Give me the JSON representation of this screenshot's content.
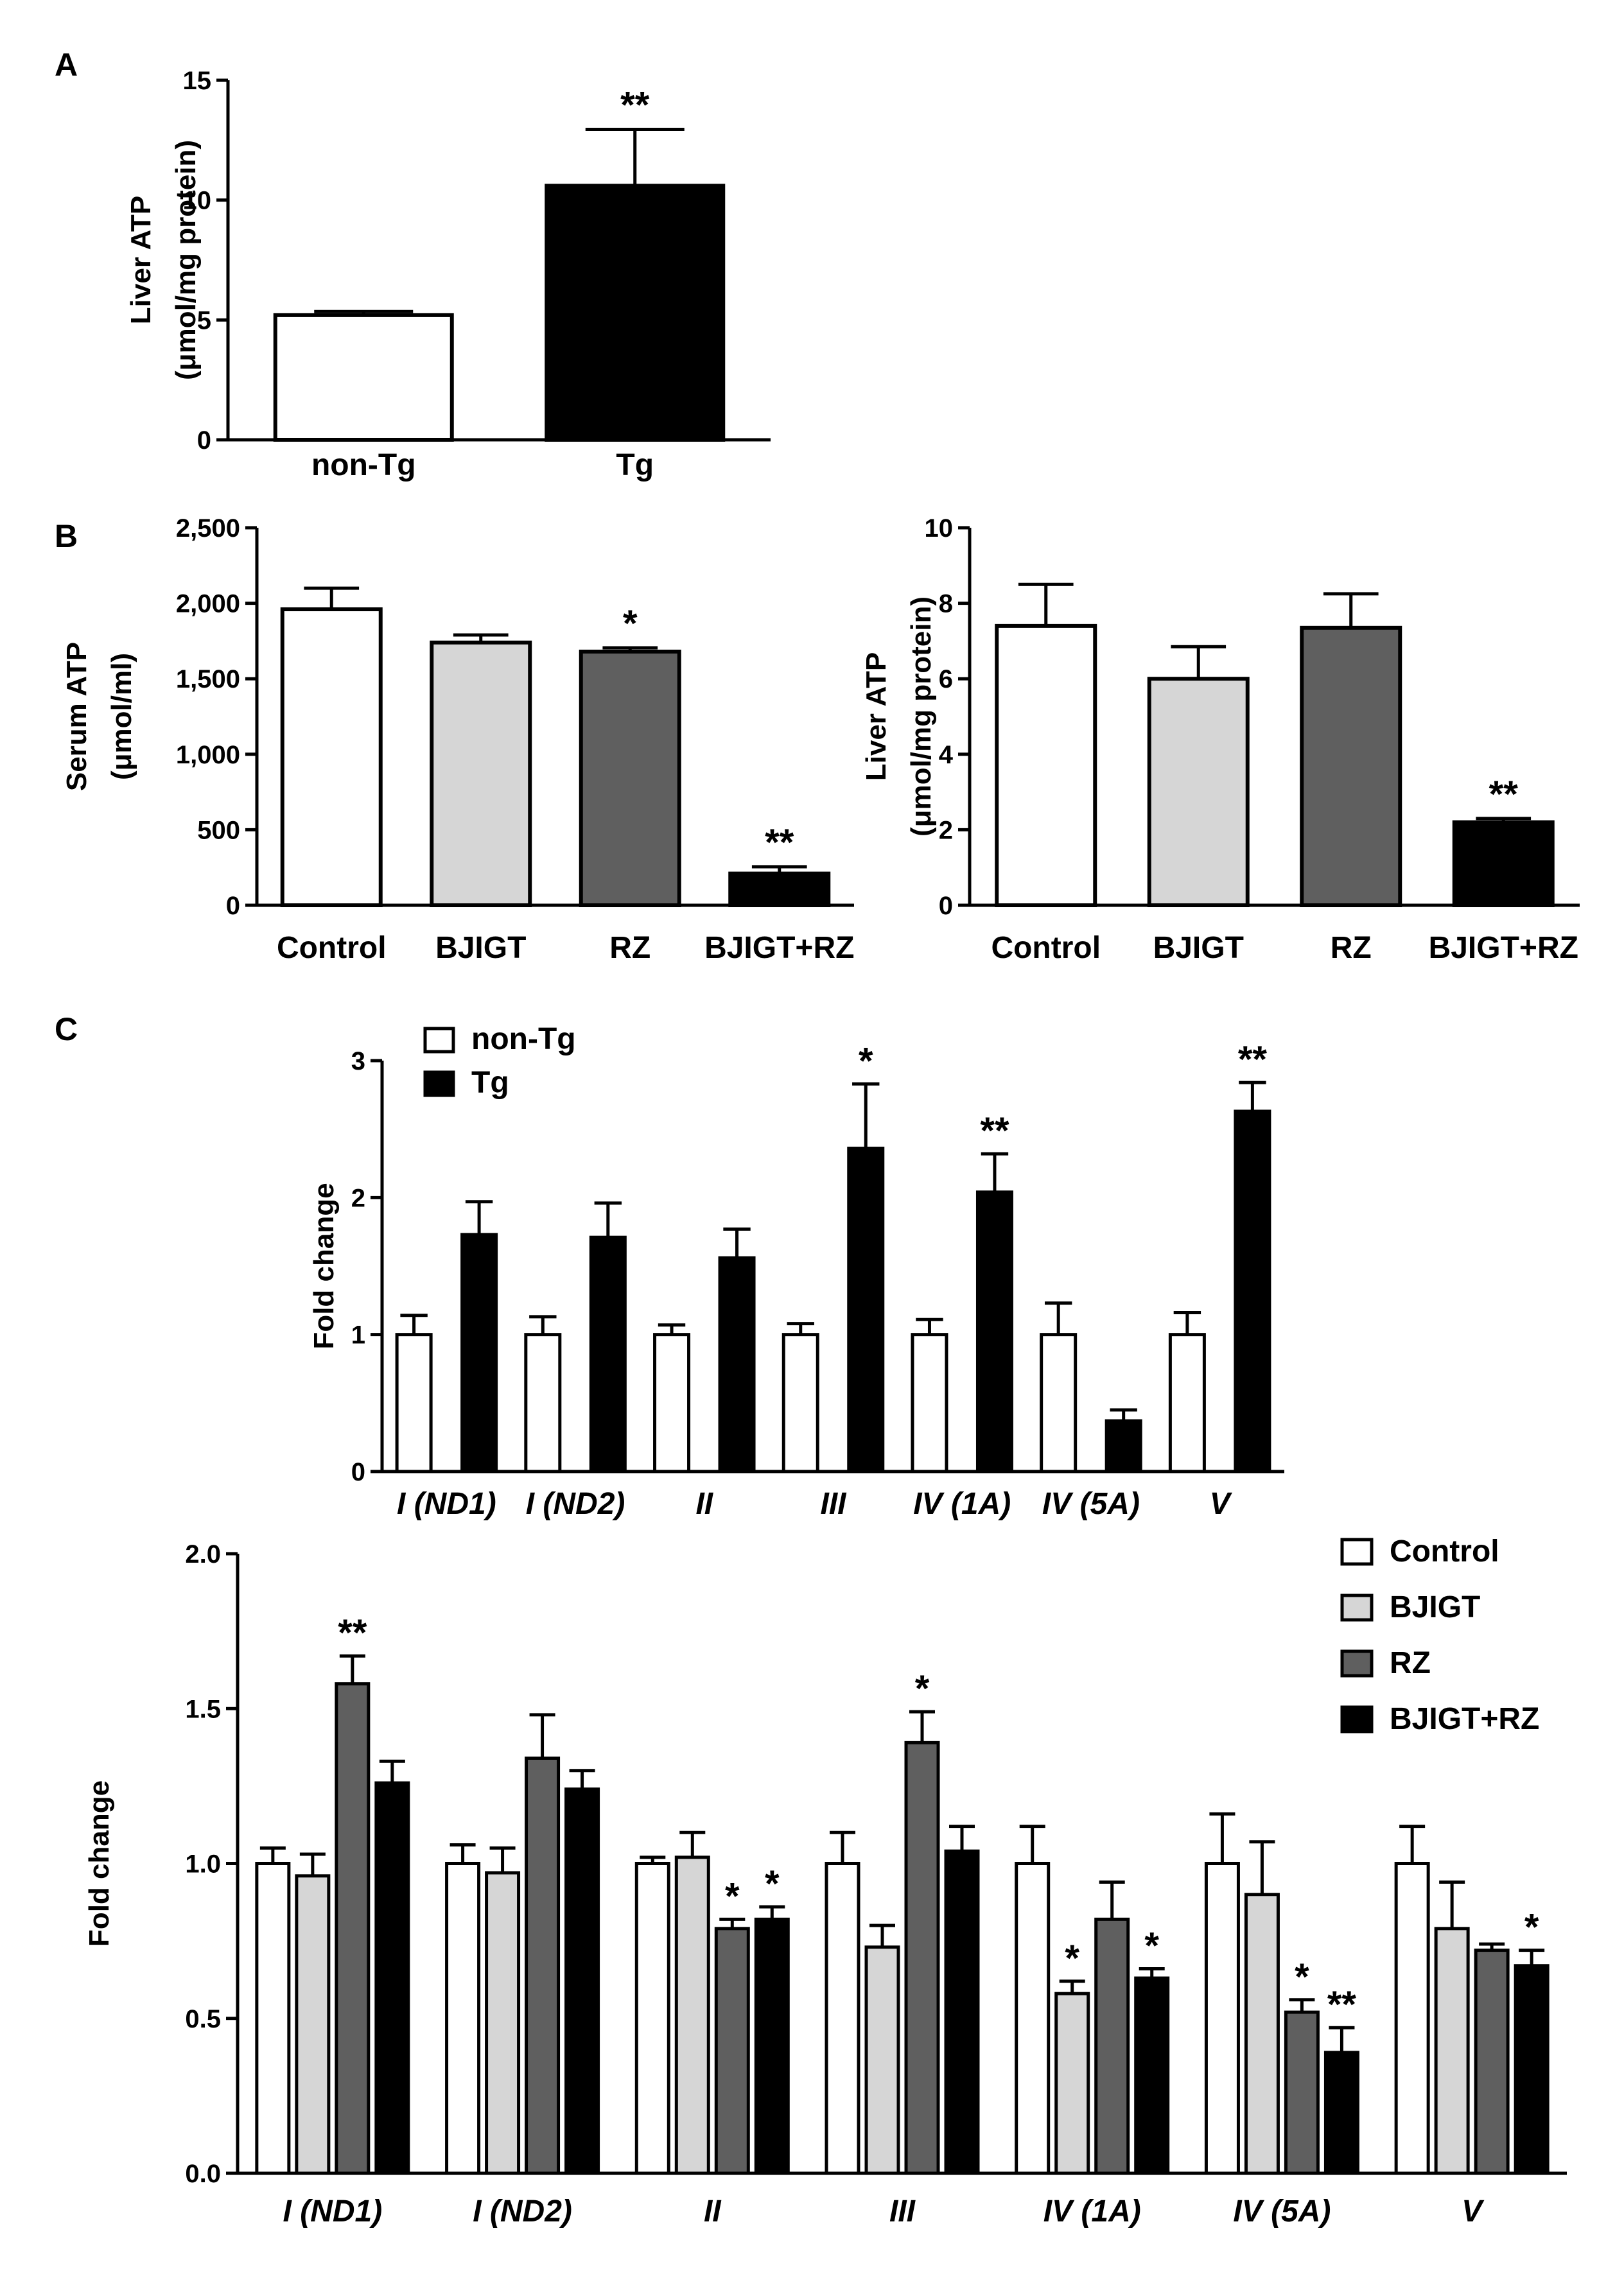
{
  "colors": {
    "Control": "#ffffff",
    "non-Tg": "#ffffff",
    "Tg": "#000000",
    "BJIGT": "#d6d6d6",
    "RZ": "#5f5f5f",
    "BJIGT+RZ": "#000000"
  },
  "chart_data": [
    {
      "id": "A",
      "panel": "A",
      "type": "bar",
      "categories": [
        "non-Tg",
        "Tg"
      ],
      "values": [
        5.2,
        10.6
      ],
      "errors": [
        0.15,
        2.35
      ],
      "significance": [
        "",
        "**"
      ],
      "ylabel": [
        "Liver ATP",
        "(μmol/mg protein)"
      ],
      "ylim": [
        0,
        15
      ],
      "yticks": [
        0,
        5,
        10,
        15
      ],
      "ytick_labels": [
        "0",
        "5",
        "10",
        "15"
      ]
    },
    {
      "id": "B1",
      "panel": "B",
      "type": "bar",
      "categories": [
        "Control",
        "BJIGT",
        "RZ",
        "BJIGT+RZ"
      ],
      "values": [
        1960,
        1740,
        1680,
        210
      ],
      "errors": [
        140,
        50,
        25,
        45
      ],
      "significance": [
        "",
        "",
        "*",
        "**"
      ],
      "ylabel": [
        "Serum ATP",
        "(μmol/ml)"
      ],
      "ylim": [
        0,
        2500
      ],
      "yticks": [
        0,
        500,
        1000,
        1500,
        2000,
        2500
      ],
      "ytick_labels": [
        "0",
        "500",
        "1,000",
        "1,500",
        "2,000",
        "2,500"
      ]
    },
    {
      "id": "B2",
      "panel": "",
      "type": "bar",
      "categories": [
        "Control",
        "BJIGT",
        "RZ",
        "BJIGT+RZ"
      ],
      "values": [
        7.4,
        6.0,
        7.35,
        2.2
      ],
      "errors": [
        1.1,
        0.85,
        0.9,
        0.1
      ],
      "significance": [
        "",
        "",
        "",
        "**"
      ],
      "ylabel": [
        "Liver ATP",
        "(μmol/mg protein)"
      ],
      "ylim": [
        0,
        10
      ],
      "yticks": [
        0,
        2,
        4,
        6,
        8,
        10
      ],
      "ytick_labels": [
        "0",
        "2",
        "4",
        "6",
        "8",
        "10"
      ]
    },
    {
      "id": "C1",
      "panel": "C",
      "type": "bar",
      "categories": [
        "I (ND1)",
        "I (ND2)",
        "II",
        "III",
        "IV (1A)",
        "IV (5A)",
        "V"
      ],
      "series": [
        {
          "name": "non-Tg",
          "values": [
            1.0,
            1.0,
            1.0,
            1.0,
            1.0,
            1.0,
            1.0
          ],
          "errors": [
            0.14,
            0.13,
            0.07,
            0.08,
            0.11,
            0.23,
            0.16
          ],
          "significance": [
            "",
            "",
            "",
            "",
            "",
            "",
            ""
          ]
        },
        {
          "name": "Tg",
          "values": [
            1.73,
            1.71,
            1.56,
            2.36,
            2.04,
            0.37,
            2.63
          ],
          "errors": [
            0.24,
            0.25,
            0.21,
            0.47,
            0.28,
            0.08,
            0.21
          ],
          "significance": [
            "",
            "",
            "",
            "*",
            "**",
            "",
            "**"
          ]
        }
      ],
      "ylabel": [
        "Fold change"
      ],
      "ylim": [
        0,
        3
      ],
      "yticks": [
        0,
        1,
        2,
        3
      ],
      "ytick_labels": [
        "0",
        "1",
        "2",
        "3"
      ],
      "legend": [
        "non-Tg",
        "Tg"
      ]
    },
    {
      "id": "C2",
      "panel": "",
      "type": "bar",
      "categories": [
        "I (ND1)",
        "I (ND2)",
        "II",
        "III",
        "IV (1A)",
        "IV (5A)",
        "V"
      ],
      "series": [
        {
          "name": "Control",
          "values": [
            1.0,
            1.0,
            1.0,
            1.0,
            1.0,
            1.0,
            1.0
          ],
          "errors": [
            0.05,
            0.06,
            0.02,
            0.1,
            0.12,
            0.16,
            0.12
          ],
          "significance": [
            "",
            "",
            "",
            "",
            "",
            "",
            ""
          ]
        },
        {
          "name": "BJIGT",
          "values": [
            0.96,
            0.97,
            1.02,
            0.73,
            0.58,
            0.9,
            0.79
          ],
          "errors": [
            0.07,
            0.08,
            0.08,
            0.07,
            0.04,
            0.17,
            0.15
          ],
          "significance": [
            "",
            "",
            "",
            "",
            "*",
            "",
            ""
          ]
        },
        {
          "name": "RZ",
          "values": [
            1.58,
            1.34,
            0.79,
            1.39,
            0.82,
            0.52,
            0.72
          ],
          "errors": [
            0.09,
            0.14,
            0.03,
            0.1,
            0.12,
            0.04,
            0.02
          ],
          "significance": [
            "**",
            "",
            "*",
            "*",
            "",
            "*",
            ""
          ]
        },
        {
          "name": "BJIGT+RZ",
          "values": [
            1.26,
            1.24,
            0.82,
            1.04,
            0.63,
            0.39,
            0.67
          ],
          "errors": [
            0.07,
            0.06,
            0.04,
            0.08,
            0.03,
            0.08,
            0.05
          ],
          "significance": [
            "",
            "",
            "*",
            "",
            "*",
            "**",
            "*"
          ]
        }
      ],
      "ylabel": [
        "Fold change"
      ],
      "ylim": [
        0,
        2
      ],
      "yticks": [
        0,
        0.5,
        1,
        1.5,
        2
      ],
      "ytick_labels": [
        "0.0",
        "0.5",
        "1.0",
        "1.5",
        "2.0"
      ],
      "legend": [
        "Control",
        "BJIGT",
        "RZ",
        "BJIGT+RZ"
      ]
    }
  ]
}
